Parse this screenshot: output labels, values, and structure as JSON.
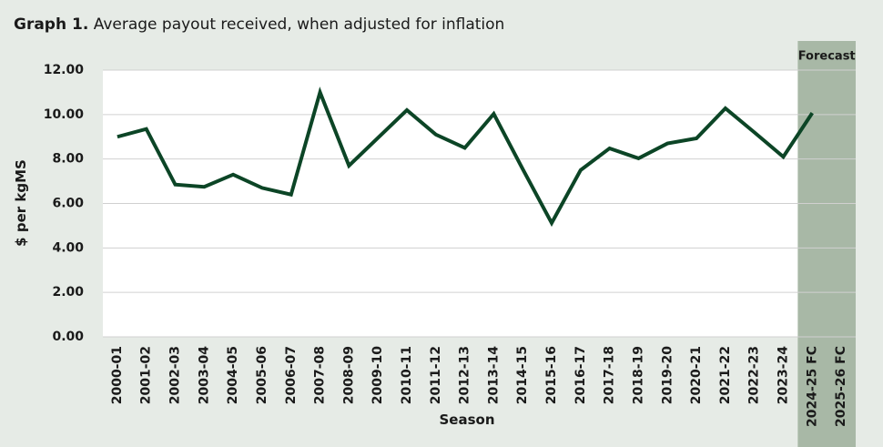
{
  "chart_data": {
    "type": "line",
    "title_prefix": "Graph 1.",
    "title": "Average payout received, when adjusted for inflation",
    "y_label": "$ per kgMS",
    "x_label": "Season",
    "annotation": "Forecast",
    "shaded_categories": [
      24,
      25
    ],
    "shade_color": "#a8b8a6",
    "categories": [
      "2000-01",
      "2001-02",
      "2002-03",
      "2003-04",
      "2004-05",
      "2005-06",
      "2006-07",
      "2007-08",
      "2008-09",
      "2009-10",
      "2010-11",
      "2011-12",
      "2012-13",
      "2013-14",
      "2014-15",
      "2015-16",
      "2016-17",
      "2017-18",
      "2018-19",
      "2019-20",
      "2020-21",
      "2021-22",
      "2022-23",
      "2023-24",
      "2024-25 FC",
      "2025-26 FC"
    ],
    "series": [
      {
        "name": "Average payout",
        "color": "#0c4526",
        "values": [
          9.0,
          9.35,
          6.85,
          6.75,
          7.3,
          6.7,
          6.4,
          11.0,
          7.7,
          8.95,
          10.2,
          9.1,
          8.5,
          10.03,
          7.55,
          5.12,
          7.5,
          8.48,
          8.03,
          8.7,
          8.93,
          10.28,
          9.2,
          8.1,
          10.07,
          null
        ]
      }
    ],
    "ylim": [
      0,
      12
    ],
    "yticks": [
      {
        "value": 0,
        "label": "0.00"
      },
      {
        "value": 2,
        "label": "2.00"
      },
      {
        "value": 4,
        "label": "4.00"
      },
      {
        "value": 6,
        "label": "6.00"
      },
      {
        "value": 8,
        "label": "8.00"
      },
      {
        "value": 10,
        "label": "10.00"
      },
      {
        "value": 12,
        "label": "12.00"
      }
    ],
    "grid": true
  }
}
